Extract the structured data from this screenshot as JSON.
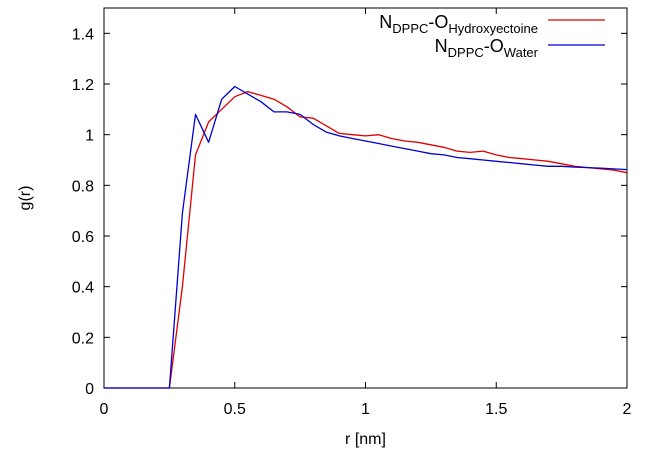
{
  "chart_data": {
    "type": "line",
    "xlabel": "r [nm]",
    "ylabel": "g(r)",
    "xlim": [
      0,
      2
    ],
    "ylim": [
      0,
      1.5
    ],
    "x_ticks": [
      "0",
      "0.5",
      "1",
      "1.5",
      "2"
    ],
    "y_ticks": [
      "0",
      "0.2",
      "0.4",
      "0.6",
      "0.8",
      "1",
      "1.2",
      "1.4"
    ],
    "grid": false,
    "legend_position": "top-right",
    "series": [
      {
        "name": "N_DPPC-O_Hydroxyectoine",
        "legend_main": "N",
        "legend_sub1": "DPPC",
        "legend_mid": "-O",
        "legend_sub2": "Hydroxyectoine",
        "color": "#e00000",
        "x": [
          0,
          0.25,
          0.3,
          0.35,
          0.4,
          0.45,
          0.5,
          0.55,
          0.6,
          0.65,
          0.7,
          0.75,
          0.8,
          0.85,
          0.9,
          0.95,
          1.0,
          1.05,
          1.1,
          1.15,
          1.2,
          1.25,
          1.3,
          1.35,
          1.4,
          1.45,
          1.5,
          1.55,
          1.6,
          1.65,
          1.7,
          1.75,
          1.8,
          1.85,
          1.9,
          1.95,
          2.0
        ],
        "y": [
          0,
          0,
          0.4,
          0.92,
          1.05,
          1.1,
          1.15,
          1.17,
          1.155,
          1.14,
          1.11,
          1.07,
          1.065,
          1.035,
          1.005,
          1.0,
          0.995,
          1.0,
          0.985,
          0.975,
          0.97,
          0.96,
          0.95,
          0.935,
          0.93,
          0.935,
          0.92,
          0.91,
          0.905,
          0.9,
          0.895,
          0.885,
          0.875,
          0.87,
          0.865,
          0.86,
          0.85
        ]
      },
      {
        "name": "N_DPPC-O_Water",
        "legend_main": "N",
        "legend_sub1": "DPPC",
        "legend_mid": "-O",
        "legend_sub2": "Water",
        "color": "#0000d0",
        "x": [
          0,
          0.25,
          0.3,
          0.35,
          0.4,
          0.45,
          0.5,
          0.55,
          0.6,
          0.65,
          0.7,
          0.75,
          0.8,
          0.85,
          0.9,
          0.95,
          1.0,
          1.05,
          1.1,
          1.15,
          1.2,
          1.25,
          1.3,
          1.35,
          1.4,
          1.45,
          1.5,
          1.55,
          1.6,
          1.65,
          1.7,
          1.75,
          1.8,
          1.85,
          1.9,
          1.95,
          2.0
        ],
        "y": [
          0,
          0,
          0.69,
          1.08,
          0.97,
          1.14,
          1.19,
          1.16,
          1.13,
          1.09,
          1.09,
          1.08,
          1.04,
          1.01,
          0.995,
          0.985,
          0.975,
          0.965,
          0.955,
          0.945,
          0.935,
          0.925,
          0.92,
          0.91,
          0.905,
          0.9,
          0.895,
          0.89,
          0.885,
          0.88,
          0.875,
          0.875,
          0.872,
          0.87,
          0.868,
          0.865,
          0.862
        ]
      }
    ]
  }
}
